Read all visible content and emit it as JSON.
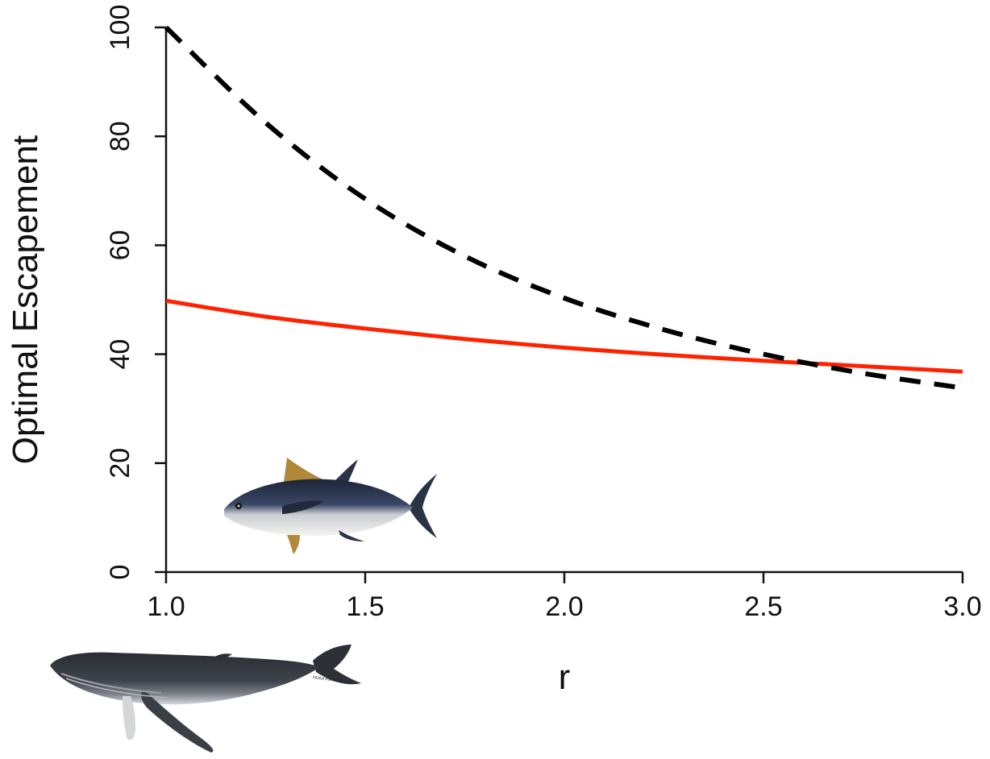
{
  "chart_data": {
    "type": "line",
    "title": "",
    "xlabel": "r",
    "ylabel": "Optimal Escapement",
    "xlim": [
      1.0,
      3.0
    ],
    "ylim": [
      0,
      100
    ],
    "x_ticks": [
      "1.0",
      "1.5",
      "2.0",
      "2.5",
      "3.0"
    ],
    "y_ticks": [
      "0",
      "20",
      "40",
      "60",
      "80",
      "100"
    ],
    "grid": false,
    "legend": "none",
    "series": [
      {
        "style": "solid",
        "color": "#ff2200",
        "x": [
          1.0,
          1.25,
          1.5,
          1.75,
          2.0,
          2.25,
          2.5,
          2.75,
          3.0
        ],
        "y": [
          49.8,
          46.9,
          44.7,
          42.8,
          41.2,
          39.9,
          38.8,
          37.8,
          36.8
        ]
      },
      {
        "style": "dashed",
        "color": "#000000",
        "x": [
          1.0,
          1.25,
          1.5,
          1.75,
          2.0,
          2.25,
          2.5,
          2.75,
          3.0
        ],
        "y": [
          100,
          82.5,
          68.5,
          58.0,
          50.3,
          44.5,
          40.0,
          36.5,
          33.8
        ]
      }
    ]
  },
  "illustrations": {
    "tuna": "tuna-fish",
    "whale": "humpback-whale",
    "whale_credit": "NOAA Fisheries"
  }
}
